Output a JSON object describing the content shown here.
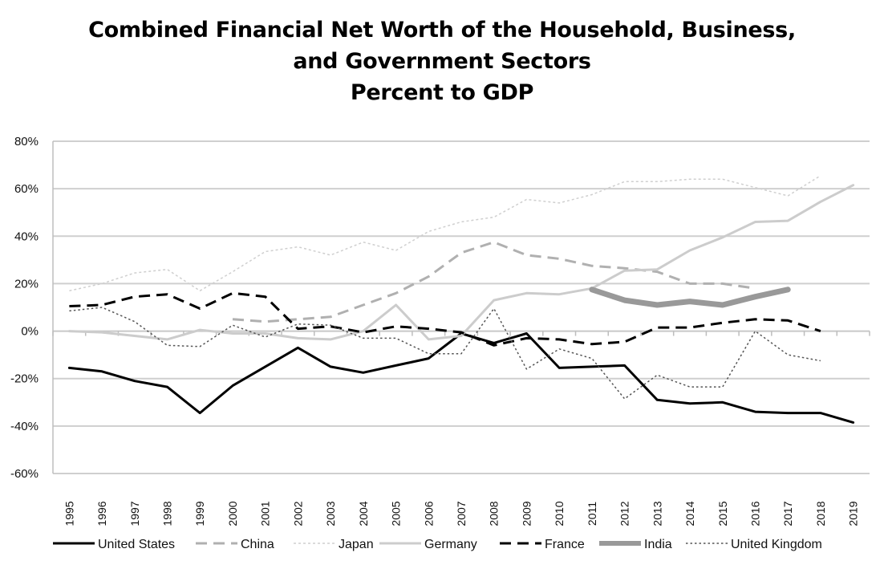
{
  "chart_data": {
    "type": "line",
    "title": [
      "Combined Financial Net Worth of the Household, Business,",
      "and Government Sectors",
      "Percent to GDP"
    ],
    "xlabel": "",
    "ylabel": "",
    "ylim": [
      -60,
      80
    ],
    "yticks": [
      -60,
      -40,
      -20,
      0,
      20,
      40,
      60,
      80
    ],
    "ytick_labels": [
      "-60%",
      "-40%",
      "-20%",
      "0%",
      "20%",
      "40%",
      "60%",
      "80%"
    ],
    "grid": true,
    "legend_position": "bottom",
    "categories": [
      "1995",
      "1996",
      "1997",
      "1998",
      "1999",
      "2000",
      "2001",
      "2002",
      "2003",
      "2004",
      "2005",
      "2006",
      "2007",
      "2008",
      "2009",
      "2010",
      "2011",
      "2012",
      "2013",
      "2014",
      "2015",
      "2016",
      "2017",
      "2018",
      "2019"
    ],
    "series": [
      {
        "name": "United States",
        "color": "#000000",
        "dash": "solid",
        "width": 3,
        "values": [
          -15.5,
          -17,
          -21,
          -23.5,
          -34.5,
          -23,
          -15,
          -7,
          -15,
          -17.5,
          -14.5,
          -11.5,
          -1,
          -5,
          -1,
          -15.5,
          -15,
          -14.5,
          -29,
          -30.5,
          -30,
          -34,
          -34.5,
          -34.5,
          -38.5
        ]
      },
      {
        "name": "China",
        "color": "#b0b0b0",
        "dash": "dashed",
        "width": 3,
        "values": [
          null,
          null,
          null,
          null,
          null,
          5,
          4,
          5,
          6,
          11,
          16,
          23,
          33,
          37.5,
          32,
          30.5,
          27.5,
          26.5,
          25,
          20,
          20,
          18,
          null,
          null,
          null
        ]
      },
      {
        "name": "Japan",
        "color": "#cfcfcf",
        "dash": "dotted",
        "width": 1.5,
        "values": [
          17,
          20,
          24.5,
          26,
          17,
          25,
          33.5,
          35.5,
          32,
          37.5,
          34,
          42,
          46,
          48,
          55.5,
          54,
          57.5,
          63,
          63,
          64,
          64,
          60.5,
          57,
          65.5,
          null
        ]
      },
      {
        "name": "Germany",
        "color": "#cccccc",
        "dash": "solid",
        "width": 3,
        "values": [
          0,
          -0.5,
          -2,
          -3.5,
          0.5,
          -1,
          -1,
          -3,
          -3.5,
          0,
          11,
          -3.5,
          -2,
          13,
          16,
          15.5,
          18,
          25.5,
          26,
          34,
          39.5,
          46,
          46.5,
          54.5,
          61.5
        ]
      },
      {
        "name": "France",
        "color": "#000000",
        "dash": "dashed",
        "width": 3,
        "values": [
          10.5,
          11,
          14.5,
          15.5,
          9.5,
          16,
          14.5,
          1,
          2,
          -0.5,
          2,
          1,
          -0.5,
          -6,
          -3,
          -3.5,
          -5.5,
          -4.5,
          1.5,
          1.5,
          3.5,
          5,
          4.5,
          0,
          null
        ]
      },
      {
        "name": "India",
        "color": "#999999",
        "dash": "solid",
        "width": 7,
        "values": [
          null,
          null,
          null,
          null,
          null,
          null,
          null,
          null,
          null,
          null,
          null,
          null,
          null,
          null,
          null,
          null,
          17.5,
          13,
          11,
          12.5,
          11,
          14.5,
          17.5,
          null,
          null
        ]
      },
      {
        "name": "United Kingdom",
        "color": "#555555",
        "dash": "fine-dotted",
        "width": 1.5,
        "values": [
          8.5,
          10,
          4,
          -6,
          -6.5,
          2.5,
          -2.5,
          3,
          2.5,
          -3,
          -3,
          -9.5,
          -9.5,
          9.5,
          -16,
          -7.5,
          -11.5,
          -28.5,
          -18.5,
          -23.5,
          -23.5,
          0,
          -10,
          -12.5,
          null
        ]
      }
    ]
  }
}
